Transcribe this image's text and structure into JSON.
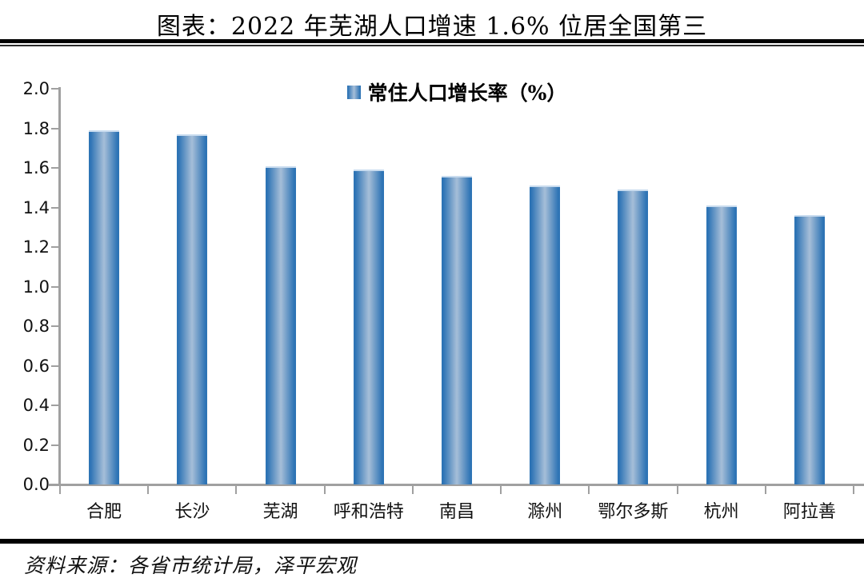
{
  "header": {
    "title": "图表：2022 年芜湖人口增速 1.6% 位居全国第三"
  },
  "chart_data": {
    "type": "bar",
    "title": "图表：2022 年芜湖人口增速 1.6% 位居全国第三",
    "legend": "常住人口增长率（%）",
    "legend_position": "top-center",
    "categories": [
      "合肥",
      "长沙",
      "芜湖",
      "呼和浩特",
      "南昌",
      "滁州",
      "鄂尔多斯",
      "杭州",
      "阿拉善"
    ],
    "values": [
      1.79,
      1.77,
      1.61,
      1.59,
      1.56,
      1.51,
      1.49,
      1.41,
      1.36
    ],
    "xlabel": "",
    "ylabel": "",
    "ylim": [
      0.0,
      2.0
    ],
    "ytick_step": 0.2,
    "ytick_labels": [
      "0.0",
      "0.2",
      "0.4",
      "0.6",
      "0.8",
      "1.0",
      "1.2",
      "1.4",
      "1.6",
      "1.8",
      "2.0"
    ],
    "grid": false,
    "colors": {
      "bar_edge": "#2e74b5",
      "bar_center": "#a6bed8",
      "bar_top_highlight": "#c9dcef",
      "axis": "#a0a0a0",
      "text": "#111111"
    }
  },
  "footer": {
    "source": "资料来源：各省市统计局，泽平宏观"
  }
}
